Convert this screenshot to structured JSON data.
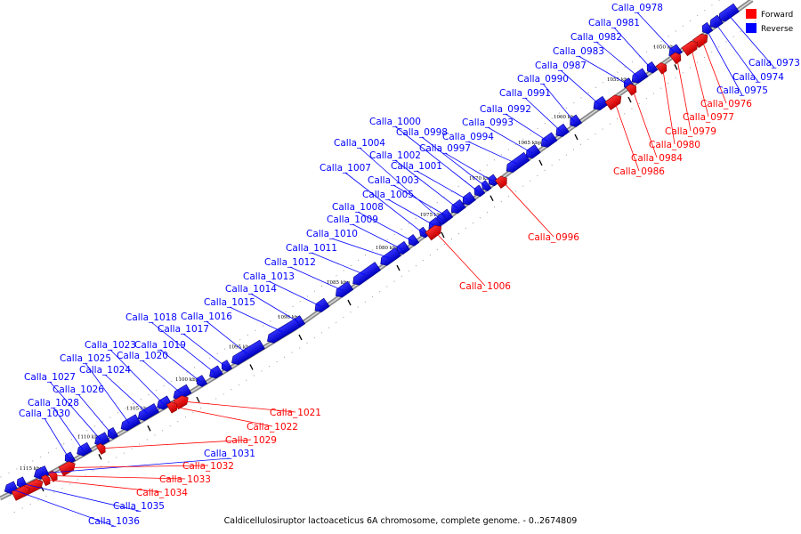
{
  "caption": "Caldicellulosiruptor lactoaceticus 6A chromosome, complete genome. - 0..2674809",
  "legend": [
    {
      "label": "Forward",
      "color": "#ff0000"
    },
    {
      "label": "Reverse",
      "color": "#0000ff"
    }
  ],
  "colors": {
    "forward": "#ff0000",
    "reverse": "#0000ff",
    "backbone": "#999999"
  },
  "kbp_ticks": [
    "1050 kbp",
    "1055 kbp",
    "1060 kbp",
    "1065 kbp",
    "1070 kbp",
    "1075 kbp",
    "1080 kbp",
    "1085 kbp",
    "1090 kbp",
    "1095 kbp",
    "1100 kbp",
    "1105 kbp",
    "1110 kbp",
    "1115 kbp"
  ],
  "reverse_genes": [
    "Calla_0973",
    "Calla_0974",
    "Calla_0975",
    "Calla_0978",
    "Calla_0981",
    "Calla_0982",
    "Calla_0983",
    "Calla_0987",
    "Calla_0990",
    "Calla_0991",
    "Calla_0992",
    "Calla_0993",
    "Calla_0994",
    "Calla_0997",
    "Calla_0998",
    "Calla_1000",
    "Calla_1001",
    "Calla_1002",
    "Calla_1003",
    "Calla_1004",
    "Calla_1005",
    "Calla_1007",
    "Calla_1008",
    "Calla_1009",
    "Calla_1010",
    "Calla_1011",
    "Calla_1012",
    "Calla_1013",
    "Calla_1014",
    "Calla_1015",
    "Calla_1016",
    "Calla_1017",
    "Calla_1018",
    "Calla_1019",
    "Calla_1020",
    "Calla_1023",
    "Calla_1024",
    "Calla_1025",
    "Calla_1026",
    "Calla_1027",
    "Calla_1028",
    "Calla_1030",
    "Calla_1031",
    "Calla_1035",
    "Calla_1036"
  ],
  "forward_genes": [
    "Calla_0976",
    "Calla_0977",
    "Calla_0979",
    "Calla_0980",
    "Calla_0984",
    "Calla_0986",
    "Calla_0996",
    "Calla_1006",
    "Calla_1021",
    "Calla_1022",
    "Calla_1029",
    "Calla_1032",
    "Calla_1033",
    "Calla_1034"
  ]
}
